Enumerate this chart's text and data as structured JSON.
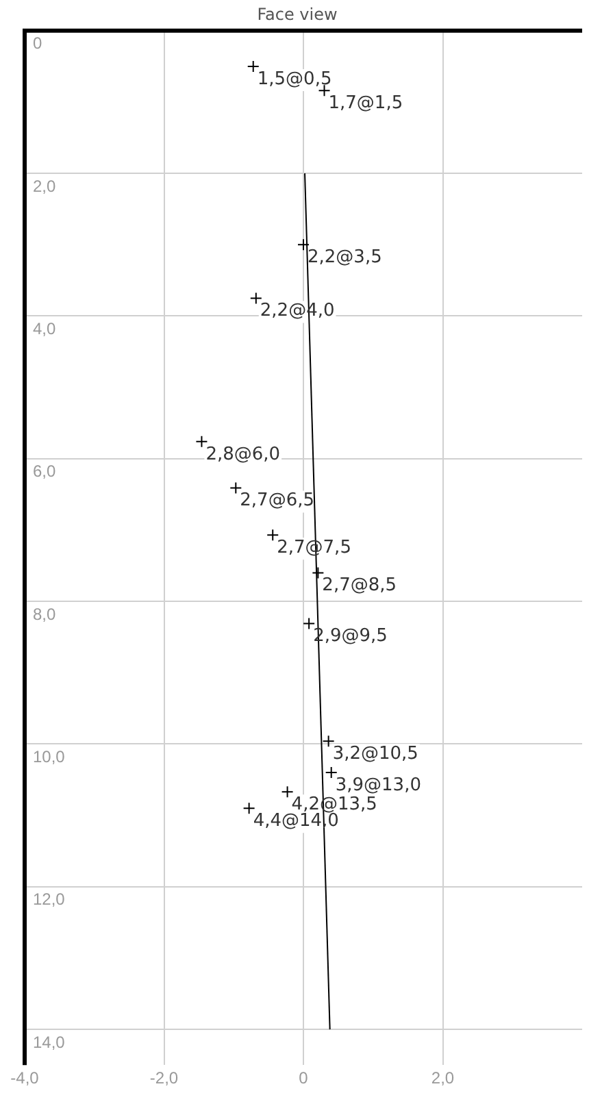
{
  "chart_data": {
    "type": "scatter",
    "title": "Face view",
    "series": [
      {
        "color": "#000000",
        "marker": "cross",
        "x": [
          -0.72,
          0.3,
          0.0,
          -0.68,
          -1.46,
          -0.97,
          -0.44,
          0.21,
          0.08,
          0.36,
          0.4,
          -0.23,
          -0.78
        ],
        "values": [
          0.5,
          0.84,
          3.0,
          3.75,
          5.76,
          6.41,
          7.07,
          7.6,
          8.31,
          9.96,
          10.4,
          10.67,
          10.9
        ]
      },
      {
        "type": "line",
        "color": "#000000",
        "marker": "none",
        "x": [
          0.02,
          0.38
        ],
        "values": [
          2.0,
          14.0
        ]
      }
    ],
    "annotations": [
      {
        "text": "1,5@0,5",
        "x": -0.72,
        "y": 0.5
      },
      {
        "text": "1,7@1,5",
        "x": 0.3,
        "y": 0.84
      },
      {
        "text": "2,2@3,5",
        "x": 0.0,
        "y": 3.0
      },
      {
        "text": "2,2@4,0",
        "x": -0.68,
        "y": 3.75
      },
      {
        "text": "2,8@6,0",
        "x": -1.46,
        "y": 5.76
      },
      {
        "text": "2,7@6,5",
        "x": -0.97,
        "y": 6.41
      },
      {
        "text": "2,7@7,5",
        "x": -0.44,
        "y": 7.07
      },
      {
        "text": "2,7@8,5",
        "x": 0.21,
        "y": 7.6
      },
      {
        "text": "2,9@9,5",
        "x": 0.08,
        "y": 8.31
      },
      {
        "text": "3,2@10,5",
        "x": 0.36,
        "y": 9.96
      },
      {
        "text": "3,9@13,0",
        "x": 0.4,
        "y": 10.4
      },
      {
        "text": "4,2@13,5",
        "x": -0.23,
        "y": 10.67
      },
      {
        "text": "4,4@14,0",
        "x": -0.78,
        "y": 10.9
      }
    ],
    "xlim": [
      -4,
      4
    ],
    "ylim": [
      14.5,
      0
    ],
    "xticks": [
      {
        "value": -4,
        "label": "-4,0"
      },
      {
        "value": -2,
        "label": "-2,0"
      },
      0,
      {
        "value": 2,
        "label": "2,0"
      }
    ],
    "yticks": [
      0,
      {
        "value": 2,
        "label": "2,0"
      },
      {
        "value": 4,
        "label": "4,0"
      },
      {
        "value": 6,
        "label": "6,0"
      },
      {
        "value": 8,
        "label": "8,0"
      },
      {
        "value": 10,
        "label": "10,0"
      },
      {
        "value": 12,
        "label": "12,0"
      },
      {
        "value": 14,
        "label": "14,0"
      }
    ],
    "grid": true,
    "legend": false
  }
}
